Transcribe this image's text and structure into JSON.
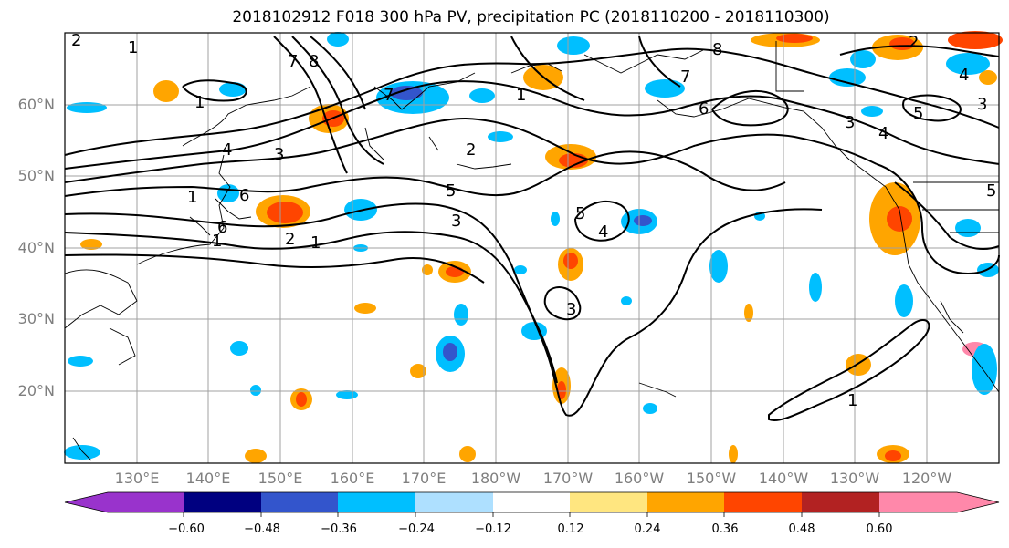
{
  "title": "2018102912 F018 300 hPa PV, precipitation PC (2018110200 - 2018110300)",
  "lat_labels": [
    "60°N",
    "50°N",
    "40°N",
    "30°N",
    "20°N"
  ],
  "lon_labels": [
    "130°E",
    "140°E",
    "150°E",
    "160°E",
    "170°E",
    "180°W",
    "170°W",
    "160°W",
    "150°W",
    "140°W",
    "130°W",
    "120°W"
  ],
  "colorbar": {
    "ticks": [
      "−0.60",
      "−0.48",
      "−0.36",
      "−0.24",
      "−0.12",
      "0.12",
      "0.24",
      "0.36",
      "0.48",
      "0.60"
    ],
    "colors": [
      "#9933cc",
      "#000080",
      "#3355cc",
      "#00bfff",
      "#aee0ff",
      "#ffffff",
      "#ffe680",
      "#ffa500",
      "#ff4500",
      "#b22222",
      "#ff88aa"
    ]
  },
  "contour_labels": [
    "1",
    "2",
    "3",
    "4",
    "5",
    "6",
    "7",
    "8"
  ],
  "colors": {
    "axis_label": "#7f7f7f",
    "grid": "#a0a0a0",
    "contour": "#000000"
  }
}
